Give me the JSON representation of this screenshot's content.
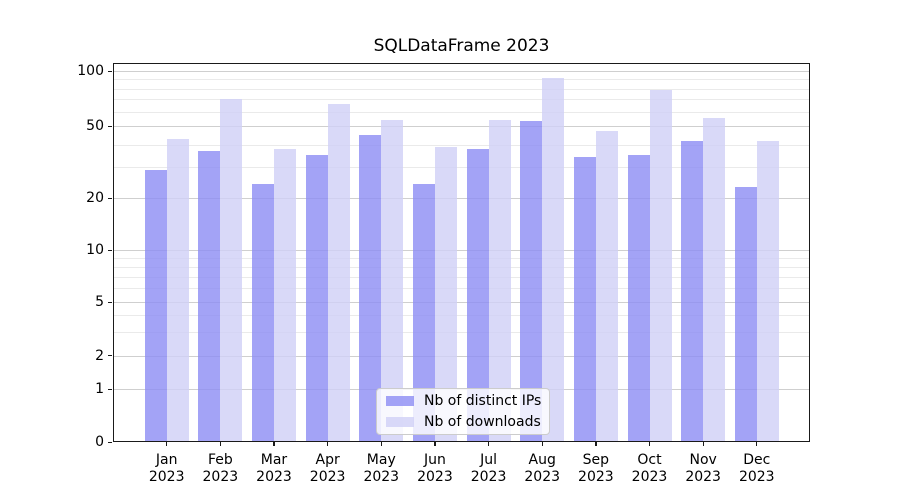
{
  "title": "SQLDataFrame 2023",
  "chart_data": {
    "type": "bar",
    "title": "SQLDataFrame 2023",
    "year_label": "2023",
    "categories": [
      "Jan",
      "Feb",
      "Mar",
      "Apr",
      "May",
      "Jun",
      "Jul",
      "Aug",
      "Sep",
      "Oct",
      "Nov",
      "Dec"
    ],
    "series": [
      {
        "name": "Nb of distinct IPs",
        "color": "#8c8cf4",
        "alpha": 0.8,
        "values": [
          29,
          37,
          24,
          35,
          45,
          24,
          38,
          53,
          34,
          35,
          42,
          23
        ]
      },
      {
        "name": "Nb of downloads",
        "color": "#d0d0f6",
        "alpha": 0.8,
        "values": [
          43,
          70,
          38,
          66,
          54,
          39,
          54,
          92,
          47,
          79,
          55,
          42
        ]
      }
    ],
    "yscale": "symlog",
    "ylim": [
      0,
      112
    ],
    "yticks": [
      0,
      1,
      2,
      5,
      10,
      20,
      50,
      100
    ],
    "minor_yticks": [
      3,
      4,
      6,
      7,
      8,
      9,
      30,
      40,
      60,
      70,
      80,
      90
    ],
    "grid": "both",
    "legend_position": "lower center",
    "scale_y_anchors": [
      [
        0,
        442
      ],
      [
        1,
        389
      ],
      [
        2,
        355.5
      ],
      [
        5,
        302
      ],
      [
        10,
        250
      ],
      [
        20,
        198
      ],
      [
        30,
        167
      ],
      [
        40,
        145
      ],
      [
        50,
        126
      ],
      [
        100,
        71
      ]
    ],
    "colors": {
      "grid_major": "#cfcfcf",
      "grid_minor": "#eaeaea",
      "spine": "#1a1a1a",
      "text": "#000000",
      "legend_border": "#cccccc"
    }
  }
}
